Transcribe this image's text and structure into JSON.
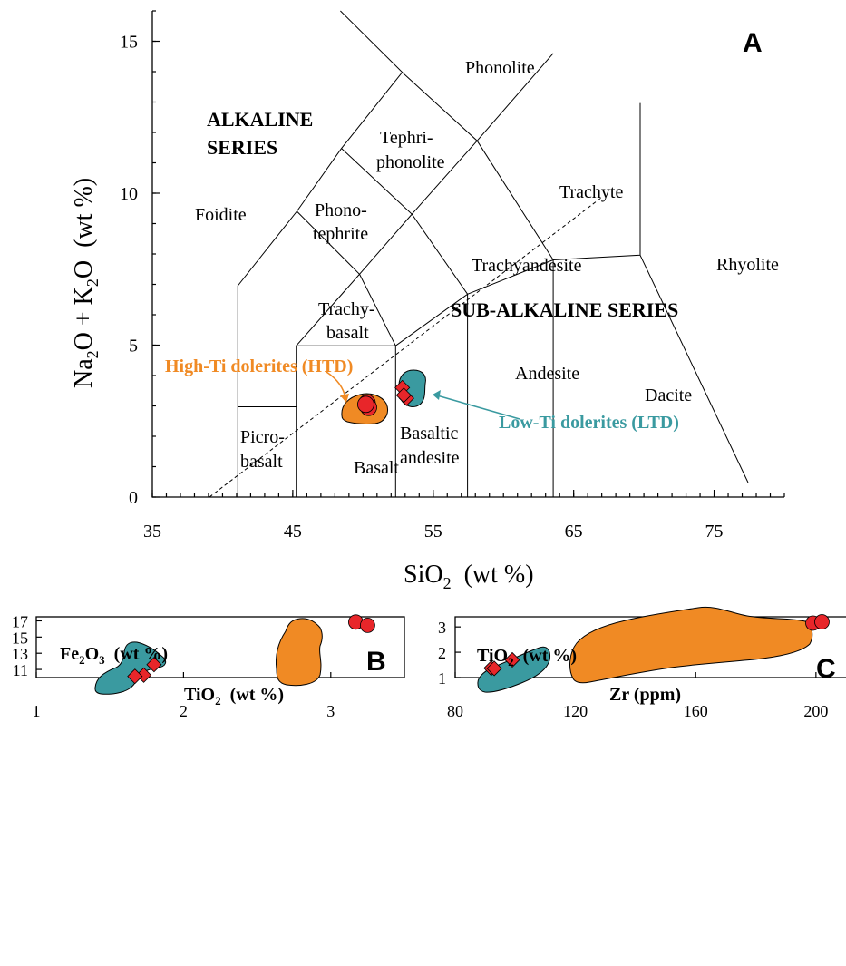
{
  "chart_data": [
    {
      "type": "scatter",
      "panel": "A",
      "title": "",
      "xlabel": "SiO2 (wt %)",
      "ylabel": "Na2O + K2O (wt %)",
      "xlim": [
        35,
        80
      ],
      "ylim": [
        0,
        16
      ],
      "xticks": [
        35,
        45,
        55,
        65,
        75
      ],
      "yticks": [
        0,
        5,
        10,
        15
      ],
      "grid": false,
      "series_labels": {
        "alkaline": "ALKALINE SERIES",
        "subalkaline": "SUB-ALKALINE SERIES"
      },
      "fields": [
        "Foidite",
        "Picro-basalt",
        "Basalt",
        "Basaltic andesite",
        "Andesite",
        "Dacite",
        "Rhyolite",
        "Trachy-basalt",
        "Phono-tephrite",
        "Tephri-phonolite",
        "Phonolite",
        "Trachyandesite",
        "Trachyte"
      ],
      "annotations": [
        {
          "text": "High-Ti dolerites (HTD)",
          "color": "#f08a24"
        },
        {
          "text": "Low-Ti dolerites (LTD)",
          "color": "#3a9aa0"
        }
      ],
      "series": [
        {
          "group": "HTD",
          "marker": "circle",
          "x": [
            50.3,
            50.4,
            50.2
          ],
          "y": [
            3.1,
            2.95,
            3.05
          ]
        },
        {
          "group": "LTD",
          "marker": "diamond",
          "x": [
            52.8,
            53.1,
            52.9
          ],
          "y": [
            3.6,
            3.25,
            3.35
          ]
        }
      ]
    },
    {
      "type": "scatter",
      "panel": "B",
      "title": "Fe2O3 (wt %)",
      "xlabel": "TiO2 (wt %)",
      "ylabel": "",
      "xlim": [
        1,
        3.5
      ],
      "ylim": [
        10,
        17.5
      ],
      "xticks": [
        1,
        2,
        3
      ],
      "yticks": [
        11,
        13,
        15,
        17
      ],
      "grid": false,
      "series": [
        {
          "group": "HTD",
          "marker": "circle",
          "x": [
            3.17,
            3.25
          ],
          "y": [
            16.85,
            16.45
          ]
        },
        {
          "group": "LTD",
          "marker": "diamond",
          "x": [
            1.8,
            1.73,
            1.67
          ],
          "y": [
            11.6,
            10.3,
            10.15
          ]
        }
      ]
    },
    {
      "type": "scatter",
      "panel": "C",
      "title": "TiO2 (wt %)",
      "xlabel": "Zr (ppm)",
      "ylabel": "",
      "xlim": [
        80,
        210
      ],
      "ylim": [
        1,
        3.4
      ],
      "xticks": [
        80,
        120,
        160,
        200
      ],
      "yticks": [
        1,
        2,
        3
      ],
      "grid": false,
      "series": [
        {
          "group": "HTD",
          "marker": "circle",
          "x": [
            199,
            202
          ],
          "y": [
            3.15,
            3.2
          ]
        },
        {
          "group": "LTD",
          "marker": "diamond",
          "x": [
            99,
            92,
            93
          ],
          "y": [
            1.7,
            1.37,
            1.36
          ]
        }
      ]
    }
  ],
  "colors": {
    "htd": "#f08a24",
    "ltd": "#3a9aa0",
    "marker": "#e8262a"
  }
}
